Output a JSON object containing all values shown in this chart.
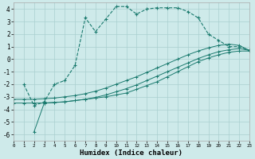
{
  "line_color": "#1a7a6e",
  "bg_color": "#ceeaea",
  "grid_color": "#aacfcf",
  "xlabel": "Humidex (Indice chaleur)",
  "xlim": [
    0,
    23
  ],
  "ylim": [
    -6.5,
    4.5
  ],
  "yticks": [
    -6,
    -5,
    -4,
    -3,
    -2,
    -1,
    0,
    1,
    2,
    3,
    4
  ],
  "xticks": [
    0,
    1,
    2,
    3,
    4,
    5,
    6,
    7,
    8,
    9,
    10,
    11,
    12,
    13,
    14,
    15,
    16,
    17,
    18,
    19,
    20,
    21,
    22,
    23
  ],
  "line1_x": [
    1,
    2,
    3,
    4,
    5,
    6,
    7,
    8,
    9,
    10,
    11,
    12,
    13,
    14,
    15,
    16,
    17,
    18,
    19,
    20,
    21,
    22,
    23
  ],
  "line1_y": [
    -2.0,
    -3.7,
    -3.4,
    -2.0,
    -1.7,
    -0.5,
    3.3,
    2.2,
    3.2,
    4.2,
    4.2,
    3.6,
    4.0,
    4.1,
    4.1,
    4.1,
    3.8,
    3.3,
    2.0,
    1.5,
    1.0,
    1.0,
    0.7
  ],
  "line2_x": [
    2,
    3,
    4,
    5,
    6,
    7,
    8,
    9,
    10,
    11,
    12,
    13,
    14,
    15,
    16,
    17,
    18,
    19,
    20,
    21,
    22,
    23
  ],
  "line2_y": [
    -5.8,
    -3.5,
    -3.45,
    -3.4,
    -3.3,
    -3.2,
    -3.1,
    -3.0,
    -2.85,
    -2.7,
    -2.4,
    -2.1,
    -1.8,
    -1.4,
    -1.0,
    -0.6,
    -0.2,
    0.1,
    0.35,
    0.55,
    0.65,
    0.65
  ],
  "line3_x": [
    0,
    1,
    2,
    3,
    4,
    5,
    6,
    7,
    8,
    9,
    10,
    11,
    12,
    13,
    14,
    15,
    16,
    17,
    18,
    19,
    20,
    21,
    22,
    23
  ],
  "line3_y": [
    -3.5,
    -3.5,
    -3.5,
    -3.5,
    -3.45,
    -3.4,
    -3.3,
    -3.2,
    -3.05,
    -2.85,
    -2.6,
    -2.35,
    -2.05,
    -1.7,
    -1.35,
    -1.0,
    -0.65,
    -0.3,
    0.05,
    0.35,
    0.6,
    0.75,
    0.85,
    0.7
  ],
  "line4_x": [
    0,
    1,
    2,
    3,
    4,
    5,
    6,
    7,
    8,
    9,
    10,
    11,
    12,
    13,
    14,
    15,
    16,
    17,
    18,
    19,
    20,
    21,
    22,
    23
  ],
  "line4_y": [
    -3.2,
    -3.2,
    -3.2,
    -3.15,
    -3.1,
    -3.0,
    -2.9,
    -2.75,
    -2.55,
    -2.3,
    -2.0,
    -1.7,
    -1.4,
    -1.05,
    -0.7,
    -0.35,
    0.0,
    0.35,
    0.65,
    0.9,
    1.1,
    1.2,
    1.1,
    0.7
  ]
}
